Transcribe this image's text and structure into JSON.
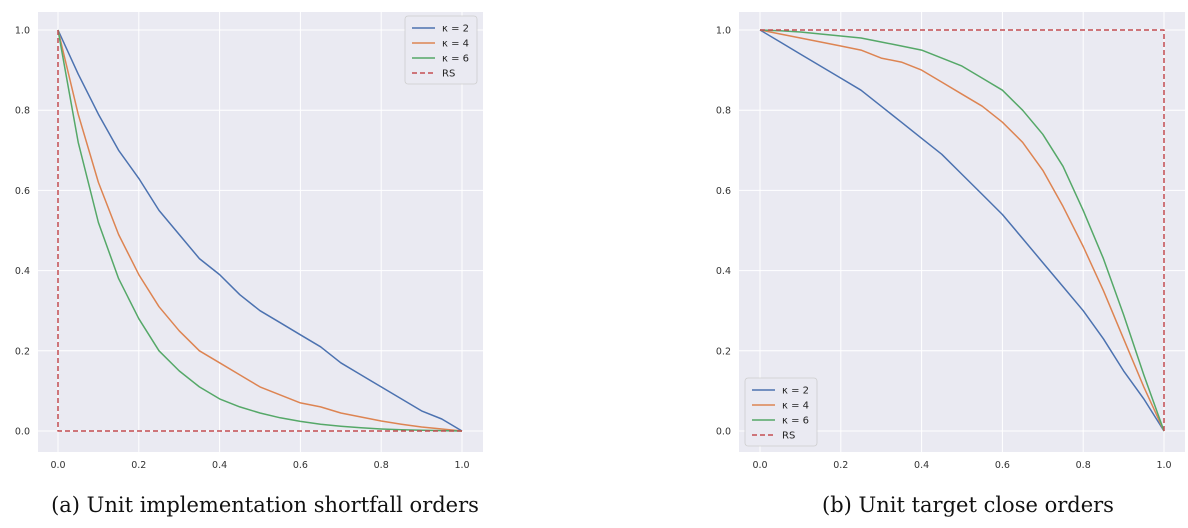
{
  "chart_data": [
    {
      "type": "line",
      "caption": "(a) Unit implementation shortfall orders",
      "xlim": [
        0,
        1
      ],
      "ylim": [
        0,
        1
      ],
      "xticks": [
        "0.0",
        "0.2",
        "0.4",
        "0.6",
        "0.8",
        "1.0"
      ],
      "yticks": [
        "0.0",
        "0.2",
        "0.4",
        "0.6",
        "0.8",
        "1.0"
      ],
      "grid": true,
      "legend_position": "top-right",
      "series": [
        {
          "name": "κ = 2",
          "color": "#4c72b0",
          "dash": false,
          "x": [
            0,
            0.05,
            0.1,
            0.15,
            0.2,
            0.25,
            0.3,
            0.35,
            0.4,
            0.45,
            0.5,
            0.55,
            0.6,
            0.65,
            0.7,
            0.75,
            0.8,
            0.85,
            0.9,
            0.95,
            1.0
          ],
          "y": [
            1.0,
            0.89,
            0.79,
            0.7,
            0.63,
            0.55,
            0.49,
            0.43,
            0.39,
            0.34,
            0.3,
            0.27,
            0.24,
            0.21,
            0.17,
            0.14,
            0.11,
            0.08,
            0.05,
            0.03,
            0.0
          ]
        },
        {
          "name": "κ = 4",
          "color": "#dd8452",
          "dash": false,
          "x": [
            0,
            0.05,
            0.1,
            0.15,
            0.2,
            0.25,
            0.3,
            0.35,
            0.4,
            0.45,
            0.5,
            0.55,
            0.6,
            0.65,
            0.7,
            0.75,
            0.8,
            0.85,
            0.9,
            0.95,
            1.0
          ],
          "y": [
            1.0,
            0.79,
            0.62,
            0.49,
            0.39,
            0.31,
            0.25,
            0.2,
            0.17,
            0.14,
            0.11,
            0.09,
            0.07,
            0.06,
            0.045,
            0.035,
            0.025,
            0.017,
            0.01,
            0.005,
            0.0
          ]
        },
        {
          "name": "κ = 6",
          "color": "#55a868",
          "dash": false,
          "x": [
            0,
            0.05,
            0.1,
            0.15,
            0.2,
            0.25,
            0.3,
            0.35,
            0.4,
            0.45,
            0.5,
            0.55,
            0.6,
            0.65,
            0.7,
            0.75,
            0.8,
            0.85,
            0.9,
            0.95,
            1.0
          ],
          "y": [
            1.0,
            0.72,
            0.52,
            0.38,
            0.28,
            0.2,
            0.15,
            0.11,
            0.08,
            0.06,
            0.045,
            0.033,
            0.024,
            0.017,
            0.012,
            0.008,
            0.005,
            0.003,
            0.002,
            0.001,
            0.0
          ]
        },
        {
          "name": "RS",
          "color": "#c44e52",
          "dash": true,
          "x": [
            0,
            0,
            1
          ],
          "y": [
            1,
            0,
            0
          ]
        }
      ]
    },
    {
      "type": "line",
      "caption": "(b) Unit target close orders",
      "xlim": [
        0,
        1
      ],
      "ylim": [
        0,
        1
      ],
      "xticks": [
        "0.0",
        "0.2",
        "0.4",
        "0.6",
        "0.8",
        "1.0"
      ],
      "yticks": [
        "0.0",
        "0.2",
        "0.4",
        "0.6",
        "0.8",
        "1.0"
      ],
      "grid": true,
      "legend_position": "bottom-left",
      "series": [
        {
          "name": "κ = 2",
          "color": "#4c72b0",
          "dash": false,
          "x": [
            0,
            0.05,
            0.1,
            0.15,
            0.2,
            0.25,
            0.3,
            0.35,
            0.4,
            0.45,
            0.5,
            0.55,
            0.6,
            0.65,
            0.7,
            0.75,
            0.8,
            0.85,
            0.9,
            0.95,
            1.0
          ],
          "y": [
            1.0,
            0.97,
            0.94,
            0.91,
            0.88,
            0.85,
            0.81,
            0.77,
            0.73,
            0.69,
            0.64,
            0.59,
            0.54,
            0.48,
            0.42,
            0.36,
            0.3,
            0.23,
            0.15,
            0.08,
            0.0
          ]
        },
        {
          "name": "κ = 4",
          "color": "#dd8452",
          "dash": false,
          "x": [
            0,
            0.05,
            0.1,
            0.15,
            0.2,
            0.25,
            0.3,
            0.35,
            0.4,
            0.45,
            0.5,
            0.55,
            0.6,
            0.65,
            0.7,
            0.75,
            0.8,
            0.85,
            0.9,
            0.95,
            1.0
          ],
          "y": [
            1.0,
            0.99,
            0.98,
            0.97,
            0.96,
            0.95,
            0.93,
            0.92,
            0.9,
            0.87,
            0.84,
            0.81,
            0.77,
            0.72,
            0.65,
            0.56,
            0.46,
            0.35,
            0.23,
            0.11,
            0.0
          ]
        },
        {
          "name": "κ = 6",
          "color": "#55a868",
          "dash": false,
          "x": [
            0,
            0.05,
            0.1,
            0.15,
            0.2,
            0.25,
            0.3,
            0.35,
            0.4,
            0.45,
            0.5,
            0.55,
            0.6,
            0.65,
            0.7,
            0.75,
            0.8,
            0.85,
            0.9,
            0.95,
            1.0
          ],
          "y": [
            1.0,
            0.998,
            0.995,
            0.99,
            0.985,
            0.98,
            0.97,
            0.96,
            0.95,
            0.93,
            0.91,
            0.88,
            0.85,
            0.8,
            0.74,
            0.66,
            0.55,
            0.43,
            0.29,
            0.14,
            0.0
          ]
        },
        {
          "name": "RS",
          "color": "#c44e52",
          "dash": true,
          "x": [
            0,
            1,
            1
          ],
          "y": [
            1,
            1,
            0
          ]
        }
      ]
    }
  ]
}
